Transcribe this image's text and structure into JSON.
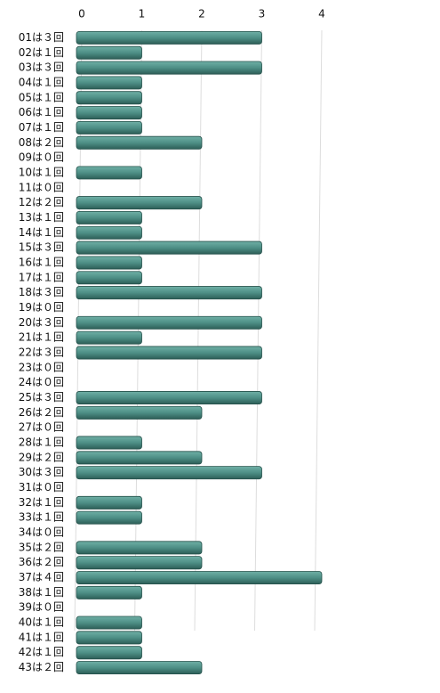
{
  "chart_data": {
    "type": "bar",
    "orientation": "horizontal",
    "categories": [
      "01は３回",
      "02は１回",
      "03は３回",
      "04は１回",
      "05は１回",
      "06は１回",
      "07は１回",
      "08は２回",
      "09は０回",
      "10は１回",
      "11は０回",
      "12は２回",
      "13は１回",
      "14は１回",
      "15は３回",
      "16は１回",
      "17は１回",
      "18は３回",
      "19は０回",
      "20は３回",
      "21は１回",
      "22は３回",
      "23は０回",
      "24は０回",
      "25は３回",
      "26は２回",
      "27は０回",
      "28は１回",
      "29は２回",
      "30は３回",
      "31は０回",
      "32は１回",
      "33は１回",
      "34は０回",
      "35は２回",
      "36は２回",
      "37は４回",
      "38は１回",
      "39は０回",
      "40は１回",
      "41は１回",
      "42は１回",
      "43は２回"
    ],
    "values": [
      3,
      1,
      3,
      1,
      1,
      1,
      1,
      2,
      0,
      1,
      0,
      2,
      1,
      1,
      3,
      1,
      1,
      3,
      0,
      3,
      1,
      3,
      0,
      0,
      3,
      2,
      0,
      1,
      2,
      3,
      0,
      1,
      1,
      0,
      2,
      2,
      4,
      1,
      0,
      1,
      1,
      1,
      2
    ],
    "color": "#4e8f86",
    "xlim": [
      0,
      4
    ],
    "xticks": [
      0,
      1,
      2,
      3,
      4
    ],
    "grid": true
  }
}
